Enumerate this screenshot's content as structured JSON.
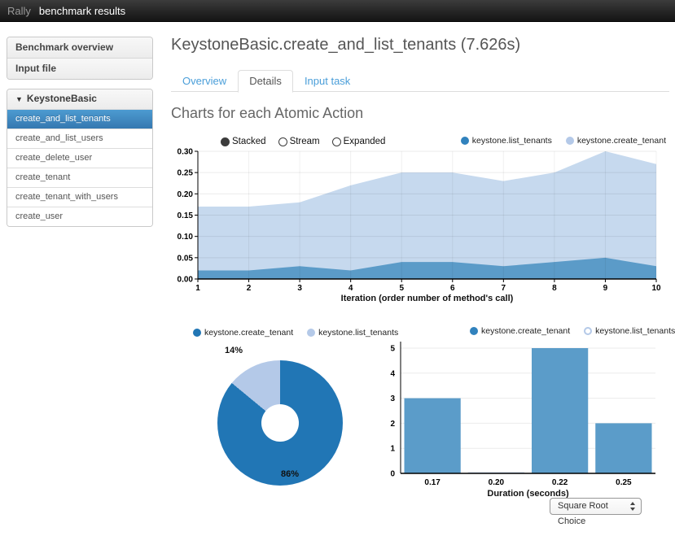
{
  "topbar": {
    "brand": "Rally",
    "title": "benchmark results"
  },
  "sidebar": {
    "links": [
      {
        "label": "Benchmark overview"
      },
      {
        "label": "Input file"
      }
    ],
    "accordion": {
      "caret": "▼",
      "header": "KeystoneBasic",
      "items": [
        {
          "label": "create_and_list_tenants",
          "selected": true
        },
        {
          "label": "create_and_list_users",
          "selected": false
        },
        {
          "label": "create_delete_user",
          "selected": false
        },
        {
          "label": "create_tenant",
          "selected": false
        },
        {
          "label": "create_tenant_with_users",
          "selected": false
        },
        {
          "label": "create_user",
          "selected": false
        }
      ]
    }
  },
  "main": {
    "title": "KeystoneBasic.create_and_list_tenants (7.626s)",
    "tabs": [
      {
        "label": "Overview",
        "active": false
      },
      {
        "label": "Details",
        "active": true
      },
      {
        "label": "Input task",
        "active": false
      }
    ],
    "section_heading": "Charts for each Atomic Action",
    "stack_controls": [
      {
        "label": "Stacked",
        "selected": true
      },
      {
        "label": "Stream",
        "selected": false
      },
      {
        "label": "Expanded",
        "selected": false
      }
    ],
    "histogram_select": {
      "value": "Square Root Choice"
    }
  },
  "colors": {
    "link_blue": "#4a9ed9",
    "selected_item_top": "#4d9bd1",
    "selected_item_bottom": "#3578b0",
    "axis": "#000000",
    "grid": "rgba(0,0,0,0.08)"
  },
  "chart_data": [
    {
      "type": "area",
      "mode": "stacked",
      "x": [
        1,
        2,
        3,
        4,
        5,
        6,
        7,
        8,
        9,
        10
      ],
      "series": [
        {
          "name": "keystone.list_tenants",
          "color": "#5b9bc8",
          "values": [
            0.02,
            0.02,
            0.03,
            0.02,
            0.04,
            0.04,
            0.03,
            0.04,
            0.05,
            0.03
          ]
        },
        {
          "name": "keystone.create_tenant",
          "color": "#c6d9ee",
          "values": [
            0.15,
            0.15,
            0.15,
            0.2,
            0.21,
            0.21,
            0.2,
            0.21,
            0.25,
            0.24
          ]
        }
      ],
      "legend": [
        {
          "label": "keystone.list_tenants",
          "color": "#3182bd",
          "ring": false
        },
        {
          "label": "keystone.create_tenant",
          "color": "#b4c9e8",
          "ring": false
        }
      ],
      "xlabel": "Iteration (order number of method's call)",
      "ylim": [
        0,
        0.3
      ],
      "yticks": [
        0.0,
        0.05,
        0.1,
        0.15,
        0.2,
        0.25,
        0.3
      ],
      "grid": true,
      "controls": [
        "Stacked",
        "Stream",
        "Expanded"
      ]
    },
    {
      "type": "pie",
      "donut": true,
      "labels": [
        "keystone.create_tenant",
        "keystone.list_tenants"
      ],
      "values": [
        86,
        14
      ],
      "unit": "%",
      "slice_labels": [
        "86%",
        "14%"
      ],
      "colors": [
        "#2176b5",
        "#b4c9e8"
      ],
      "legend": [
        {
          "label": "keystone.create_tenant",
          "color": "#2176b5",
          "ring": false
        },
        {
          "label": "keystone.list_tenants",
          "color": "#b4c9e8",
          "ring": false
        }
      ],
      "legend_position": "top"
    },
    {
      "type": "bar",
      "categories": [
        "0.17",
        "0.20",
        "0.22",
        "0.25"
      ],
      "series": [
        {
          "name": "keystone.create_tenant",
          "color": "#5b9cc9",
          "values": [
            3,
            0,
            5,
            2
          ]
        },
        {
          "name": "keystone.list_tenants",
          "color": "#c9daec",
          "values": [
            0,
            0.05,
            0,
            0
          ]
        }
      ],
      "legend": [
        {
          "label": "keystone.create_tenant",
          "color": "#3182bd",
          "ring": false
        },
        {
          "label": "keystone.list_tenants",
          "color": "#b4c9e8",
          "ring": true
        }
      ],
      "xlabel": "Duration (seconds)",
      "ylim": [
        0,
        5
      ],
      "yticks": [
        0,
        1,
        2,
        3,
        4,
        5
      ],
      "grid": true
    }
  ]
}
